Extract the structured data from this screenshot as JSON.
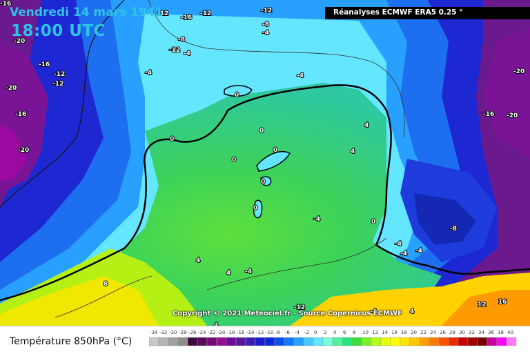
{
  "header": {
    "date": "Vendredi 14 mars 1941",
    "time": "18:00 UTC",
    "source": "Réanalyses ECMWF ERA5 0.25 °"
  },
  "footer": {
    "copyright": "Copyright © 2021 Meteociel.fr - Source Copernicus ECMWF",
    "legend_title": "Température 850hPa (°C)"
  },
  "legend": {
    "ticks": [
      "-34",
      "-32",
      "-30",
      "-28",
      "-26",
      "-24",
      "-22",
      "-20",
      "-18",
      "-16",
      "-14",
      "-12",
      "-10",
      "-8",
      "-6",
      "-4",
      "-2",
      "0",
      "2",
      "4",
      "6",
      "8",
      "10",
      "12",
      "14",
      "16",
      "18",
      "20",
      "22",
      "24",
      "26",
      "28",
      "30",
      "32",
      "34",
      "36",
      "38",
      "40"
    ],
    "colors": [
      "#c8c8c8",
      "#b4b4b4",
      "#a0a0a0",
      "#8c8c8c",
      "#3c0a3c",
      "#5a0a5a",
      "#780a78",
      "#960a96",
      "#6e0a96",
      "#5a1496",
      "#3c1eb4",
      "#1e1ec8",
      "#0a28dc",
      "#0a50f0",
      "#1478ff",
      "#28a0ff",
      "#46c8ff",
      "#64e6ff",
      "#78ffdc",
      "#50f0a0",
      "#28e678",
      "#3cdc3c",
      "#78f028",
      "#b4ff14",
      "#e6ff0a",
      "#ffff00",
      "#ffe600",
      "#ffc800",
      "#ffa000",
      "#ff7800",
      "#ff5000",
      "#f02800",
      "#c80000",
      "#a00000",
      "#780000",
      "#c8009c",
      "#ff00ff",
      "#ff78ff"
    ]
  },
  "isotherm_labels": [
    {
      "text": "-16"
    },
    {
      "text": "-12"
    },
    {
      "text": "-16"
    },
    {
      "text": "-12"
    },
    {
      "text": "-12"
    },
    {
      "text": "-8"
    },
    {
      "text": "-4"
    },
    {
      "text": "-12"
    },
    {
      "text": "-8"
    },
    {
      "text": "-4"
    },
    {
      "text": "-20"
    },
    {
      "text": "-16"
    },
    {
      "text": "-12"
    },
    {
      "text": "-12"
    },
    {
      "text": "-20"
    },
    {
      "text": "-16"
    },
    {
      "text": "-20"
    },
    {
      "text": "-4"
    },
    {
      "text": "-4"
    },
    {
      "text": "0"
    },
    {
      "text": "0"
    },
    {
      "text": "0"
    },
    {
      "text": "0"
    },
    {
      "text": "0"
    },
    {
      "text": "0"
    },
    {
      "text": "0"
    },
    {
      "text": "4"
    },
    {
      "text": "4"
    },
    {
      "text": "-4"
    },
    {
      "text": "0"
    },
    {
      "text": "-4"
    },
    {
      "text": "-4"
    },
    {
      "text": "-4"
    },
    {
      "text": "-8"
    },
    {
      "text": "4"
    },
    {
      "text": "4"
    },
    {
      "text": "-4"
    },
    {
      "text": "8"
    },
    {
      "text": "4"
    },
    {
      "text": "12"
    },
    {
      "text": "16"
    },
    {
      "text": "-20"
    },
    {
      "text": "-16"
    },
    {
      "text": "-20"
    },
    {
      "text": "-12"
    },
    {
      "text": "-4"
    },
    {
      "text": "4"
    }
  ]
}
